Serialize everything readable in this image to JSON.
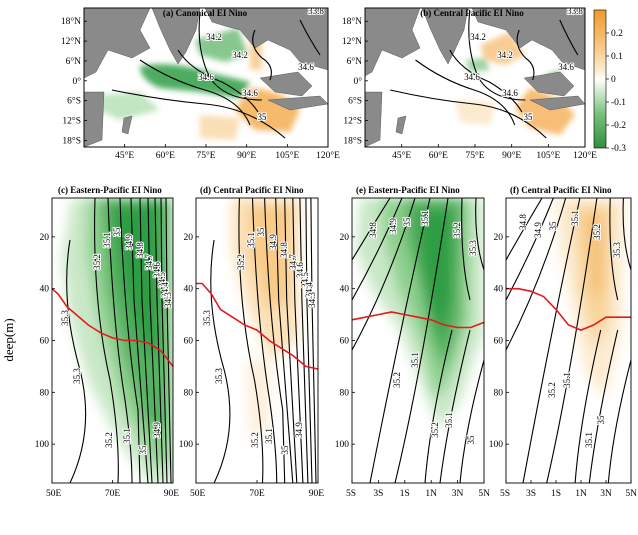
{
  "colorbar": {
    "ticks": [
      "0.2",
      "0.1",
      "0",
      "-0.1",
      "-0.2",
      "-0.3"
    ],
    "values": [
      0.2,
      0.1,
      0,
      -0.1,
      -0.2,
      -0.3
    ],
    "min": -0.3,
    "max": 0.3,
    "negative_color": "#3a9a45",
    "positive_color": "#f0a43a"
  },
  "colors": {
    "land": "#8a8a8a",
    "contour": "#000000",
    "mixed_layer": "#e41a1c",
    "green": "#2f9e44",
    "orange": "#f2a33a"
  },
  "chart_data": [
    {
      "type": "heatmap",
      "panel": "a",
      "title": "(a) Canonical EI Nino",
      "x_ticks": [
        "45°E",
        "60°E",
        "75°E",
        "90°E",
        "105°E",
        "120°E"
      ],
      "y_ticks": [
        "18°N",
        "12°N",
        "6°N",
        "0°",
        "6°S",
        "12°S",
        "18°S"
      ],
      "xlim": [
        30,
        120
      ],
      "ylim": [
        -20,
        22
      ],
      "contour_labels": [
        "33.8",
        "34.2",
        "34.6",
        "35",
        "34.2",
        "34.6",
        "34.6"
      ],
      "anomaly": "negative in central/eastern Arabian Sea and equatorial Indian Ocean; positive near Indonesia and southeastern Indian Ocean"
    },
    {
      "type": "heatmap",
      "panel": "b",
      "title": "(b) Central Pacific EI Nino",
      "x_ticks": [
        "45°E",
        "60°E",
        "75°E",
        "90°E",
        "105°E",
        "120°E"
      ],
      "y_ticks": [
        "18°N",
        "12°N",
        "6°N",
        "0°",
        "6°S",
        "12°S",
        "18°S"
      ],
      "xlim": [
        30,
        120
      ],
      "ylim": [
        -20,
        22
      ],
      "contour_labels": [
        "33.8",
        "34.2",
        "34.6",
        "35",
        "34.2",
        "34.6",
        "34.6"
      ],
      "anomaly": "weak positive in Bay of Bengal and southeastern Indian Ocean; small negative patches"
    },
    {
      "type": "heatmap",
      "panel": "c",
      "title": "(c) Eastern-Pacific EI Nino",
      "x_ticks": [
        "50E",
        "70E",
        "90E"
      ],
      "y_ticks": [
        "20",
        "40",
        "60",
        "80",
        "100"
      ],
      "xlim": [
        50,
        90
      ],
      "ylim": [
        115,
        5
      ],
      "ylabel": "deep(m)",
      "contour_labels": [
        "35.3",
        "35.2",
        "35.1",
        "35",
        "34.9",
        "34.8",
        "34.7",
        "34.6",
        "34.5",
        "34.4",
        "34.3",
        "35.3",
        "35.2",
        "35.1",
        "35",
        "34.9"
      ],
      "mixed_layer_depth": {
        "x": [
          50,
          52,
          55,
          58,
          62,
          66,
          70,
          74,
          78,
          82,
          86,
          90
        ],
        "y": [
          40,
          42,
          47,
          50,
          54,
          57,
          59,
          60,
          60,
          61,
          64,
          70
        ]
      },
      "anomaly": "negative (freshening) anomaly spanning most of the section"
    },
    {
      "type": "heatmap",
      "panel": "d",
      "title": "(d) Central Pacific EI Nino",
      "x_ticks": [
        "50E",
        "70E",
        "90E"
      ],
      "y_ticks": [
        "20",
        "40",
        "60",
        "80",
        "100"
      ],
      "xlim": [
        50,
        90
      ],
      "ylim": [
        115,
        5
      ],
      "contour_labels": [
        "35.3",
        "35.2",
        "35.1",
        "35",
        "34.9",
        "34.8",
        "34.7",
        "34.6",
        "34.5",
        "34.4",
        "34.3",
        "35.3",
        "35.2",
        "35.1",
        "35",
        "34.9"
      ],
      "mixed_layer_depth": {
        "x": [
          50,
          52,
          55,
          58,
          62,
          66,
          70,
          74,
          78,
          82,
          86,
          90
        ],
        "y": [
          38,
          38,
          42,
          48,
          51,
          54,
          56,
          60,
          63,
          66,
          70,
          71
        ]
      },
      "anomaly": "weak positive anomaly in the upper ocean"
    },
    {
      "type": "heatmap",
      "panel": "e",
      "title": "(e) Eastern-Pacific EI Nino",
      "x_ticks": [
        "5S",
        "3S",
        "1S",
        "1N",
        "3N",
        "5N"
      ],
      "y_ticks": [
        "20",
        "40",
        "60",
        "80",
        "100"
      ],
      "xlim": [
        -5,
        5
      ],
      "ylim": [
        115,
        5
      ],
      "contour_labels": [
        "34.8",
        "34.9",
        "35",
        "35.1",
        "35.2",
        "35.3",
        "35.2",
        "35.1",
        "35.2",
        "35.1",
        "35"
      ],
      "mixed_layer_depth": {
        "x": [
          -5,
          -4,
          -3,
          -2,
          -1,
          0,
          1,
          2,
          3,
          4,
          5
        ],
        "y": [
          52,
          51,
          50,
          49,
          50,
          51,
          52,
          54,
          55,
          55,
          53
        ]
      },
      "anomaly": "strong negative anomaly centred near 1N–3N extending below 100 m"
    },
    {
      "type": "heatmap",
      "panel": "f",
      "title": "(f) Central Pacific EI Nino",
      "x_ticks": [
        "5S",
        "3S",
        "1S",
        "1N",
        "3N",
        "5N"
      ],
      "y_ticks": [
        "20",
        "40",
        "60",
        "80",
        "100"
      ],
      "xlim": [
        -5,
        5
      ],
      "ylim": [
        115,
        5
      ],
      "contour_labels": [
        "34.8",
        "34.9",
        "35",
        "35.1",
        "35.2",
        "35.3",
        "35.1",
        "35.2",
        "35.1",
        "35"
      ],
      "mixed_layer_depth": {
        "x": [
          -5,
          -4,
          -3,
          -2,
          -1,
          0,
          1,
          2,
          3,
          4,
          5
        ],
        "y": [
          40,
          40,
          41,
          43,
          48,
          54,
          56,
          54,
          51,
          51,
          51
        ]
      },
      "anomaly": "weak positive anomaly near 1N–3N"
    }
  ]
}
